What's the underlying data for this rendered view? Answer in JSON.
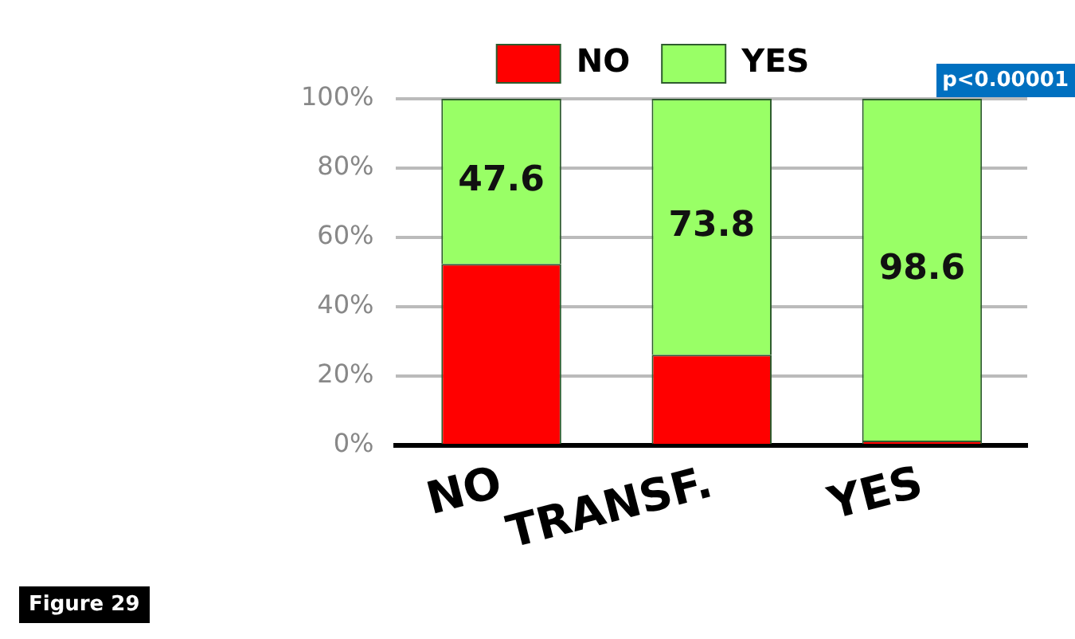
{
  "chart_data": {
    "type": "bar",
    "stacked": true,
    "categories": [
      "NO",
      "TRANSF.",
      "YES"
    ],
    "series": [
      {
        "name": "NO",
        "color": "#ff0000",
        "values": [
          52.4,
          26.2,
          1.4
        ]
      },
      {
        "name": "YES",
        "color": "#99ff66",
        "values": [
          47.6,
          73.8,
          98.6
        ],
        "value_labels": [
          "47.6",
          "73.8",
          "98.6"
        ]
      }
    ],
    "ylim": [
      0,
      100
    ],
    "yticks": [
      {
        "value": 0,
        "label": "0%"
      },
      {
        "value": 20,
        "label": "20%"
      },
      {
        "value": 40,
        "label": "40%"
      },
      {
        "value": 60,
        "label": "60%"
      },
      {
        "value": 80,
        "label": "80%"
      },
      {
        "value": 100,
        "label": "100%"
      }
    ],
    "grid": "y",
    "legend": "top",
    "annotations": [
      "p<0.00001",
      "Figure 29"
    ]
  }
}
